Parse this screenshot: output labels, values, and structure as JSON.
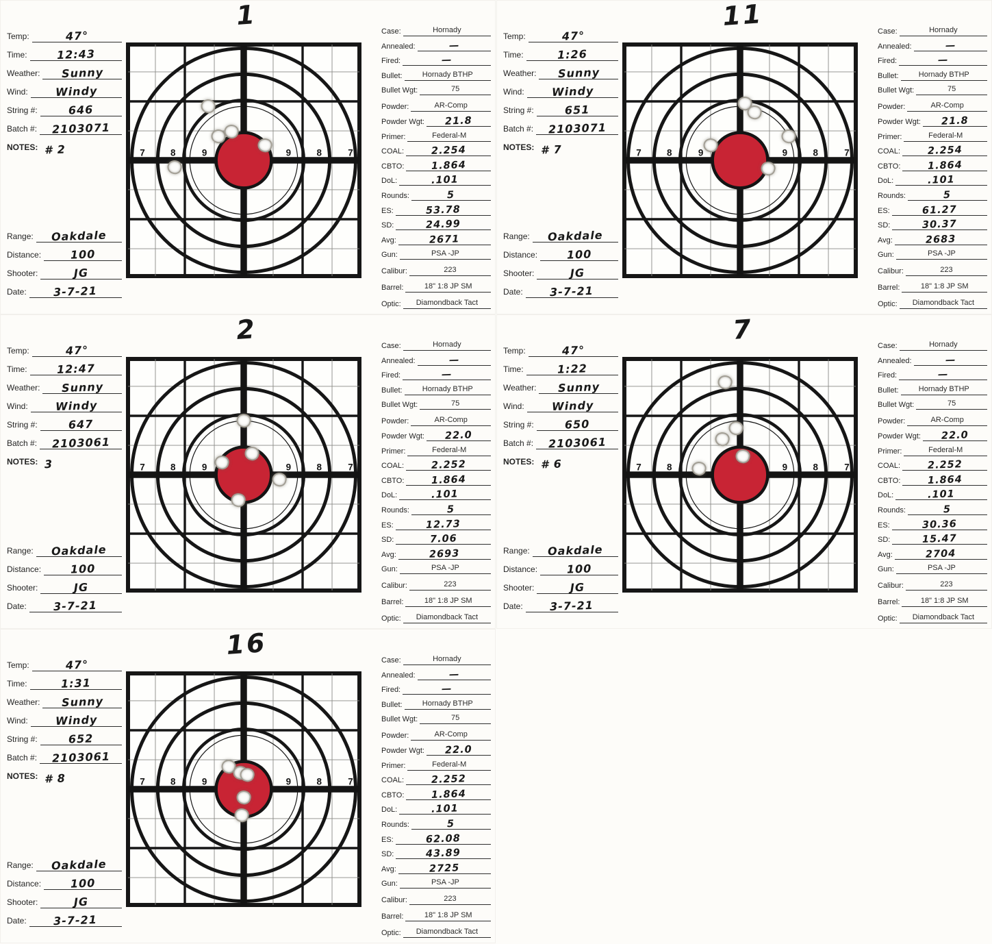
{
  "design": {
    "numbers": [
      "7",
      "8",
      "9",
      "9",
      "8",
      "7"
    ],
    "bullseye_color": "#c82434"
  },
  "labels": {
    "temp": "Temp:",
    "time": "Time:",
    "weather": "Weather:",
    "wind": "Wind:",
    "string": "String #:",
    "batch": "Batch #:",
    "notes": "NOTES:",
    "range": "Range:",
    "distance": "Distance:",
    "shooter": "Shooter:",
    "date": "Date:",
    "case": "Case:",
    "annealed": "Annealed:",
    "fired": "Fired:",
    "bullet": "Bullet:",
    "bullet_wgt": "Bullet Wgt:",
    "powder": "Powder:",
    "powder_wgt": "Powder Wgt:",
    "primer": "Primer:",
    "coal": "COAL:",
    "cbto": "CBTO:",
    "dol": "DoL:",
    "rounds": "Rounds:",
    "es": "ES:",
    "sd": "SD:",
    "avg": "Avg:",
    "gun": "Gun:",
    "calibur": "Calibur:",
    "barrel": "Barrel:",
    "optic": "Optic:"
  },
  "sheets": [
    {
      "target_number": "1",
      "left": {
        "temp": "47°",
        "time": "12:43",
        "weather": "Sunny",
        "wind": "Windy",
        "string": "646",
        "batch": "2103071",
        "notes": "# 2",
        "range": "Oakdale",
        "distance": "100",
        "shooter": "JG",
        "date": "3-7-21"
      },
      "right": {
        "case": "Hornady",
        "annealed": "—",
        "fired": "—",
        "bullet": "Hornady BTHP",
        "bullet_wgt": "75",
        "powder": "AR-Comp",
        "powder_wgt": "21.8",
        "primer": "Federal-M",
        "coal": "2.254",
        "cbto": "1.864",
        "dol": ".101",
        "rounds": "5",
        "es": "53.78",
        "sd": "24.99",
        "avg": "2671",
        "gun": "PSA -JP",
        "calibur": "223",
        "barrel": "18\"  1:8   JP SM",
        "optic": "Diamondback Tact"
      },
      "holes": [
        [
          34.8,
          27.0
        ],
        [
          39.1,
          39.7
        ],
        [
          44.7,
          37.7
        ],
        [
          59.1,
          43.5
        ],
        [
          20.6,
          53.0
        ]
      ]
    },
    {
      "target_number": "11",
      "left": {
        "temp": "47°",
        "time": "1:26",
        "weather": "Sunny",
        "wind": "Windy",
        "string": "651",
        "batch": "2103071",
        "notes": "# 7",
        "range": "Oakdale",
        "distance": "100",
        "shooter": "JG",
        "date": "3-7-21"
      },
      "right": {
        "case": "Hornady",
        "annealed": "—",
        "fired": "—",
        "bullet": "Hornady BTHP",
        "bullet_wgt": "75",
        "powder": "AR-Comp",
        "powder_wgt": "21.8",
        "primer": "Federal-M",
        "coal": "2.254",
        "cbto": "1.864",
        "dol": ".101",
        "rounds": "5",
        "es": "61.27",
        "sd": "30.37",
        "avg": "2683",
        "gun": "PSA -JP",
        "calibur": "223",
        "barrel": "18\"  1:8   JP SM",
        "optic": "Diamondback Tact"
      },
      "holes": [
        [
          51.9,
          25.8
        ],
        [
          56.2,
          29.6
        ],
        [
          70.7,
          39.7
        ],
        [
          37.4,
          43.5
        ],
        [
          62.0,
          53.6
        ]
      ]
    },
    {
      "target_number": "2",
      "left": {
        "temp": "47°",
        "time": "12:47",
        "weather": "Sunny",
        "wind": "Windy",
        "string": "647",
        "batch": "2103061",
        "notes": "3",
        "range": "Oakdale",
        "distance": "100",
        "shooter": "JG",
        "date": "3-7-21"
      },
      "right": {
        "case": "Hornady",
        "annealed": "—",
        "fired": "—",
        "bullet": "Hornady BTHP",
        "bullet_wgt": "75",
        "powder": "AR-Comp",
        "powder_wgt": "22.0",
        "primer": "Federal-M",
        "coal": "2.252",
        "cbto": "1.864",
        "dol": ".101",
        "rounds": "5",
        "es": "12.73",
        "sd": "7.06",
        "avg": "2693",
        "gun": "PSA -JP",
        "calibur": "223",
        "barrel": "18\"  1:8   JP SM",
        "optic": "Diamondback Tact"
      },
      "holes": [
        [
          49.9,
          27.0
        ],
        [
          53.4,
          40.9
        ],
        [
          40.6,
          44.9
        ],
        [
          65.2,
          52.1
        ],
        [
          47.8,
          60.8
        ]
      ]
    },
    {
      "target_number": "7",
      "left": {
        "temp": "47°",
        "time": "1:22",
        "weather": "Sunny",
        "wind": "Windy",
        "string": "650",
        "batch": "2103061",
        "notes": "# 6",
        "range": "Oakdale",
        "distance": "100",
        "shooter": "JG",
        "date": "3-7-21"
      },
      "right": {
        "case": "Hornady",
        "annealed": "—",
        "fired": "—",
        "bullet": "Hornady BTHP",
        "bullet_wgt": "75",
        "powder": "AR-Comp",
        "powder_wgt": "22.0",
        "primer": "Federal-M",
        "coal": "2.252",
        "cbto": "1.864",
        "dol": ".101",
        "rounds": "5",
        "es": "30.36",
        "sd": "15.47",
        "avg": "2704",
        "gun": "PSA -JP",
        "calibur": "223",
        "barrel": "18\"  1:8   JP SM",
        "optic": "Diamondback Tact"
      },
      "holes": [
        [
          43.6,
          10.8
        ],
        [
          48.3,
          30.1
        ],
        [
          42.4,
          34.8
        ],
        [
          51.2,
          42.1
        ],
        [
          32.5,
          47.4
        ]
      ]
    },
    {
      "target_number": "16",
      "left": {
        "temp": "47°",
        "time": "1:31",
        "weather": "Sunny",
        "wind": "Windy",
        "string": "652",
        "batch": "2103061",
        "notes": "# 8",
        "range": "Oakdale",
        "distance": "100",
        "shooter": "JG",
        "date": "3-7-21"
      },
      "right": {
        "case": "Hornady",
        "annealed": "—",
        "fired": "—",
        "bullet": "Hornady BTHP",
        "bullet_wgt": "75",
        "powder": "AR-Comp",
        "powder_wgt": "22.0",
        "primer": "Federal-M",
        "coal": "2.252",
        "cbto": "1.864",
        "dol": ".101",
        "rounds": "5",
        "es": "62.08",
        "sd": "43.89",
        "avg": "2725",
        "gun": "PSA -JP",
        "calibur": "223",
        "barrel": "18\"  1:8   JP SM",
        "optic": "Diamondback Tact"
      },
      "holes": [
        [
          43.5,
          40.5
        ],
        [
          48.5,
          43.0
        ],
        [
          51.5,
          44.0
        ],
        [
          50.0,
          53.5
        ],
        [
          49.0,
          61.0
        ]
      ]
    }
  ]
}
